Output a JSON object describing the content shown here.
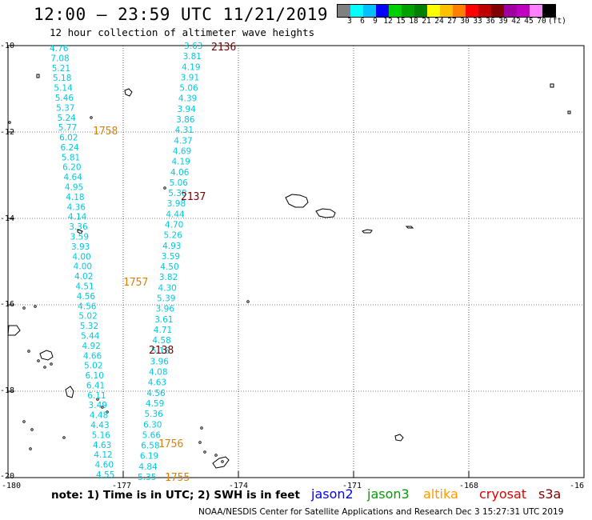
{
  "header": {
    "title": "12:00 — 23:59 UTC 11/21/2019",
    "subtitle": "12 hour collection of altimeter wave heights"
  },
  "colorbar": {
    "colors": [
      "#808080",
      "#00ffff",
      "#00c0ff",
      "#0000ff",
      "#00d000",
      "#00a000",
      "#008000",
      "#ffff00",
      "#ffc000",
      "#ff8000",
      "#ff0000",
      "#c00000",
      "#800000",
      "#a000a0",
      "#c000c0",
      "#ff80ff",
      "#000000"
    ],
    "labels": [
      "3",
      "6",
      "9",
      "12",
      "15",
      "18",
      "21",
      "24",
      "27",
      "30",
      "33",
      "36",
      "39",
      "42",
      "45",
      "70",
      "(ft)"
    ]
  },
  "axes": {
    "lon_labels": [
      "-180",
      "-177",
      "-174",
      "-171",
      "-168",
      "-16"
    ],
    "lat_labels": [
      "-10",
      "-12",
      "-14",
      "-16",
      "-18",
      "-20"
    ]
  },
  "tracks": [
    {
      "sat": "jason2",
      "color": "#00c8e0",
      "values": [
        "4.76",
        "7.08",
        "5.21",
        "5.18",
        "5.14",
        "5.46",
        "5.37",
        "5.24",
        "5.77",
        "6.02",
        "6.24",
        "5.81",
        "6.20",
        "4.64",
        "4.95",
        "4.18",
        "4.36",
        "4.14",
        "3.36",
        "3.59",
        "3.93",
        "4.00",
        "4.00",
        "4.02",
        "4.51",
        "4.56",
        "4.56",
        "5.02",
        "5.32",
        "5.44",
        "4.92",
        "4.66",
        "5.02",
        "6.10",
        "6.41",
        "6.11",
        "3.49",
        "4.48",
        "4.43",
        "5.16",
        "4.63",
        "4.12",
        "4.60",
        "4.55"
      ]
    },
    {
      "sat": "jason2",
      "color": "#00c8e0",
      "values": [
        "3.63",
        "3.81",
        "4.19",
        "3.91",
        "5.06",
        "4.39",
        "3.94",
        "3.86",
        "4.31",
        "4.37",
        "4.69",
        "4.19",
        "4.06",
        "5.06",
        "5.38",
        "3.98",
        "4.44",
        "4.70",
        "5.26",
        "4.93",
        "3.59",
        "4.50",
        "3.82",
        "4.30",
        "5.39",
        "3.96",
        "3.61",
        "4.71",
        "4.58",
        "5.16",
        "3.96",
        "4.08",
        "4.63",
        "4.56",
        "4.59",
        "5.36",
        "6.30",
        "5.66",
        "6.58",
        "6.19",
        "4.84",
        "5.35"
      ]
    }
  ],
  "pass_labels": [
    {
      "text": "2136",
      "color": "#7a0000"
    },
    {
      "text": "1758",
      "color": "#e08000"
    },
    {
      "text": "2137",
      "color": "#7a0000"
    },
    {
      "text": "1757",
      "color": "#e08000"
    },
    {
      "text": "2138",
      "color": "#7a0000"
    },
    {
      "text": "1756",
      "color": "#e08000"
    },
    {
      "text": "1755",
      "color": "#e08000"
    }
  ],
  "note": "note:  1) Time is in UTC;  2) SWH is in feet",
  "satellites": [
    {
      "name": "jason2",
      "color": "#0000ff"
    },
    {
      "name": "jason3",
      "color": "#00a000"
    },
    {
      "name": "altika",
      "color": "#ff9900"
    },
    {
      "name": "cryosat",
      "color": "#e00000"
    },
    {
      "name": "s3a",
      "color": "#800000"
    }
  ],
  "credit": "NOAA/NESDIS Center for Satellite Applications and Research    Dec  3 15:27:31 UTC 2019"
}
